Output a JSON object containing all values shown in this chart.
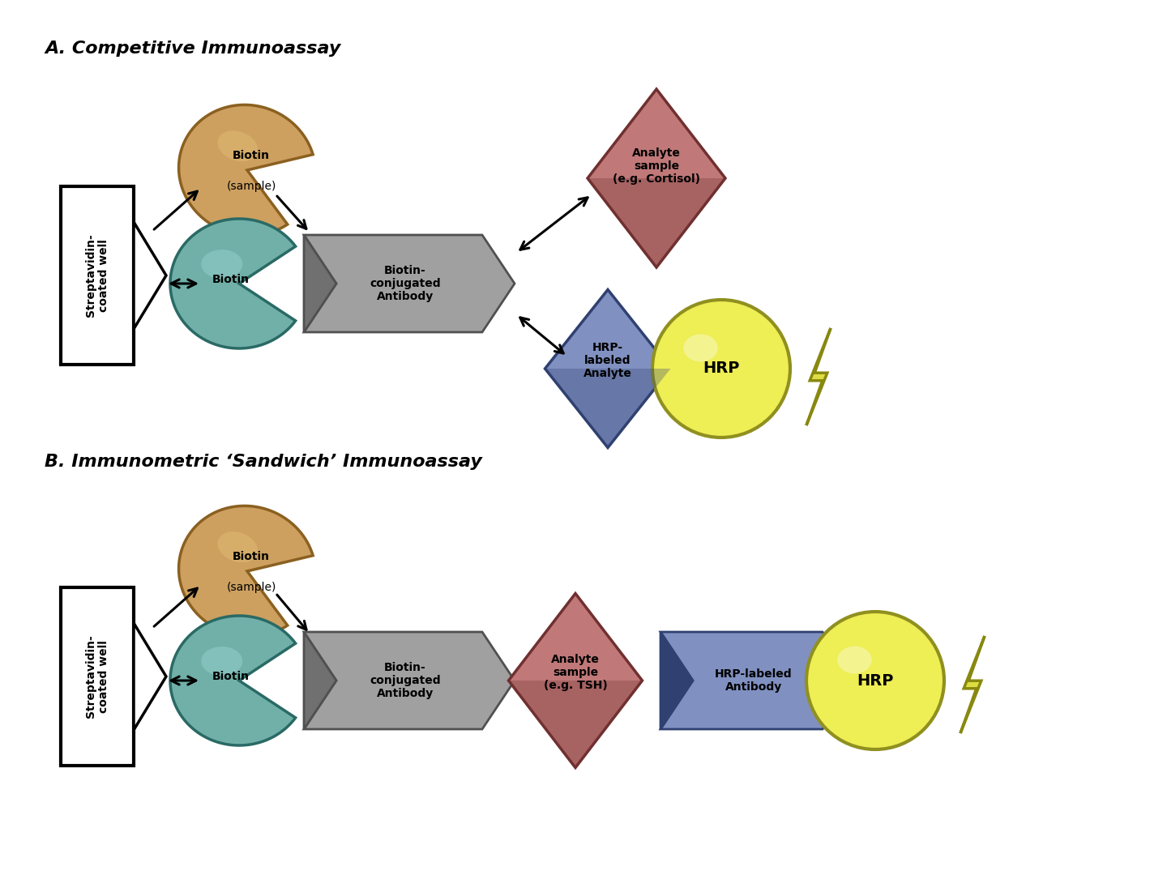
{
  "title_a": "A. Competitive Immunoassay",
  "title_b": "B. Immunometric ‘Sandwich’ Immunoassay",
  "colors": {
    "biotin_orange_face": "#CDA060",
    "biotin_orange_edge": "#8B6020",
    "biotin_orange_light": "#DDB870",
    "biotin_teal_face": "#70B0A8",
    "biotin_teal_edge": "#2A6A65",
    "biotin_teal_light": "#90CCC8",
    "gray_face": "#A0A0A0",
    "gray_edge": "#505050",
    "gray_dark": "#707070",
    "red_face": "#C07878",
    "red_edge": "#703030",
    "blue_face": "#8090C0",
    "blue_edge": "#304070",
    "yellow_face": "#EEEE55",
    "yellow_edge": "#909020",
    "lightning_face": "#DDDD44",
    "lightning_edge": "#888810",
    "box_fill": "#FFFFFF",
    "box_edge": "#000000"
  },
  "label_streptavidin": "Streptavidin-\ncoated well",
  "label_biotin_sample_line1": "Biotin",
  "label_biotin_sample_line2": "(sample)",
  "label_biotin": "Biotin",
  "label_biotin_conj_ab": "Biotin-\nconjugated\nAntibody",
  "label_analyte_cortisol": "Analyte\nsample\n(e.g. Cortisol)",
  "label_hrp_labeled_analyte": "HRP-\nlabeled\nAnalyte",
  "label_hrp": "HRP",
  "label_analyte_tsh": "Analyte\nsample\n(e.g. TSH)",
  "label_hrp_labeled_ab": "HRP-labeled\nAntibody",
  "fontsize_title": 16,
  "fontsize_label": 10,
  "fontsize_hrp": 14
}
